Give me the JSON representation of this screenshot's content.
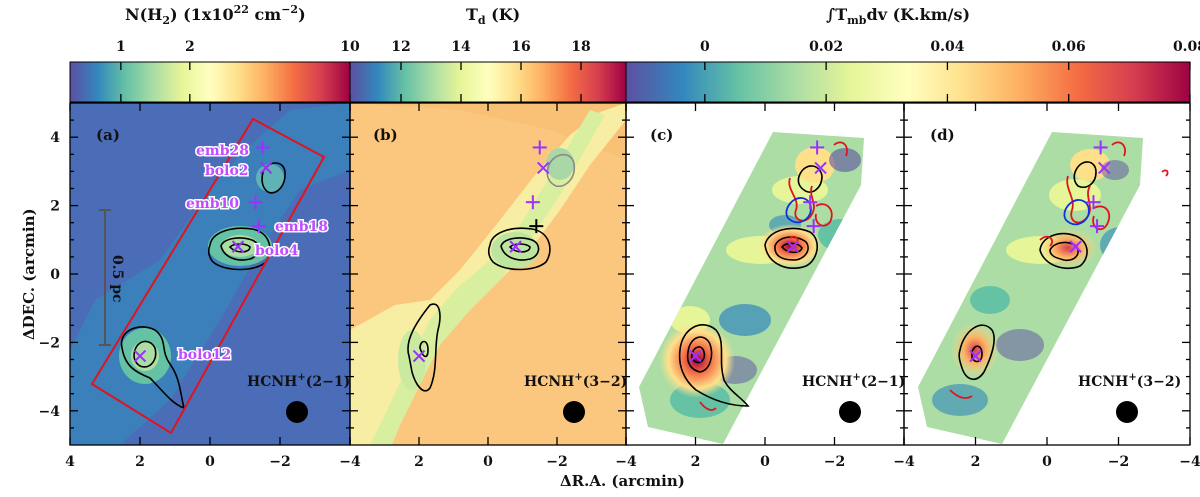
{
  "chart_data": [
    {
      "type": "heatmap",
      "panel": "(a)",
      "colorbar": {
        "label_main": "N(H",
        "label_sub": "2",
        "label_mid": ") (1x10",
        "label_sup": "22",
        "label_unit": " cm",
        "label_sup2": "−2",
        "label_end": ")",
        "ticks": [
          "1",
          "2",
          "10"
        ],
        "scale": "log",
        "range": [
          0.6,
          10
        ]
      },
      "line_label": {
        "main": "HCNH",
        "sup": "+",
        "rest": "(2−1)"
      },
      "scale_bar": "0.5 pc",
      "sources": [
        {
          "name": "emb28",
          "marker": "plus",
          "ra": -1.5,
          "dec": 3.7
        },
        {
          "name": "bolo2",
          "marker": "cross",
          "ra": -1.6,
          "dec": 3.1
        },
        {
          "name": "emb10",
          "marker": "plus",
          "ra": -1.3,
          "dec": 2.1
        },
        {
          "name": "emb18",
          "marker": "plus",
          "ra": -1.4,
          "dec": 1.4
        },
        {
          "name": "bolo4",
          "marker": "cross",
          "ra": -0.8,
          "dec": 0.8
        },
        {
          "name": "bolo12",
          "marker": "cross",
          "ra": 2.0,
          "dec": -2.4
        }
      ]
    },
    {
      "type": "heatmap",
      "panel": "(b)",
      "colorbar": {
        "label_main": "T",
        "label_sub": "d",
        "label_end": " (K)",
        "ticks": [
          "12",
          "14",
          "16",
          "18"
        ],
        "range": [
          10.3,
          19.5
        ]
      },
      "line_label": {
        "main": "HCNH",
        "sup": "+",
        "rest": "(3−2)"
      }
    },
    {
      "type": "heatmap",
      "panel": "(c)",
      "colorbar": {
        "label_main": "∫T",
        "label_sub": "mb",
        "label_end": "dv (K.km/s)",
        "ticks": [
          "0",
          "0.02",
          "0.04",
          "0.06",
          "0.08"
        ],
        "range": [
          -0.013,
          0.08
        ]
      },
      "line_label": {
        "main": "HCNH",
        "sup": "+",
        "rest": "(2−1)"
      }
    },
    {
      "type": "heatmap",
      "panel": "(d)",
      "line_label": {
        "main": "HCNH",
        "sup": "+",
        "rest": "(3−2)"
      }
    }
  ],
  "axes": {
    "xlabel": "ΔR.A. (arcmin)",
    "ylabel": "ΔDEC. (arcmin)",
    "xlim": [
      4,
      -4
    ],
    "ylim": [
      -5,
      5
    ],
    "xticks": [
      "4",
      "2",
      "0",
      "−2",
      "−4"
    ],
    "yticks": [
      "4",
      "2",
      "0",
      "−2",
      "−4"
    ]
  },
  "colors": {
    "marker": "#9b30ff",
    "contour": "#000000",
    "red_contour": "#e0141e",
    "blue_contour": "#1030e0",
    "box": "#e0141e"
  }
}
